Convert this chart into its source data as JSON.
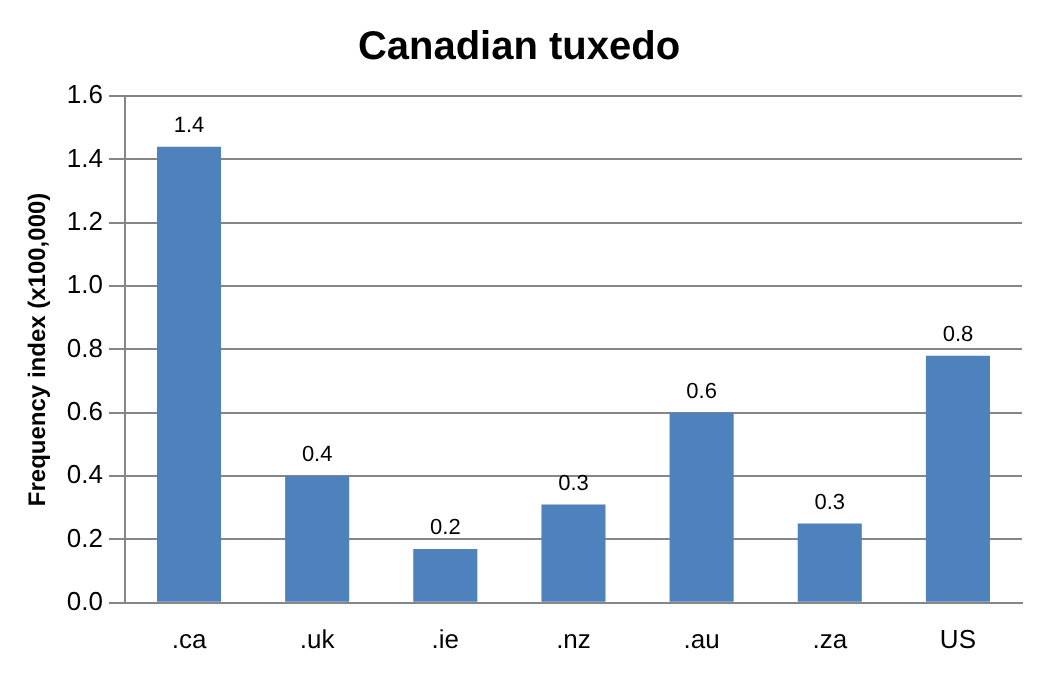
{
  "chart_data": {
    "type": "bar",
    "title": "Canadian tuxedo",
    "ylabel": "Frequency index (x100,000)",
    "categories": [
      ".ca",
      ".uk",
      ".ie",
      ".nz",
      ".au",
      ".za",
      "US"
    ],
    "values": [
      1.44,
      0.4,
      0.17,
      0.31,
      0.6,
      0.25,
      0.78
    ],
    "value_labels": [
      "1.4",
      "0.4",
      "0.2",
      "0.3",
      "0.6",
      "0.3",
      "0.8"
    ],
    "color": "#4f81bd",
    "ylim": [
      0,
      1.6
    ],
    "yticks": [
      {
        "value": 0,
        "label": "0.0"
      },
      0.2,
      0.4,
      0.6,
      0.8,
      {
        "value": 1,
        "label": "1.0"
      },
      1.2,
      1.4,
      1.6
    ],
    "grid": "y",
    "legend": false
  }
}
